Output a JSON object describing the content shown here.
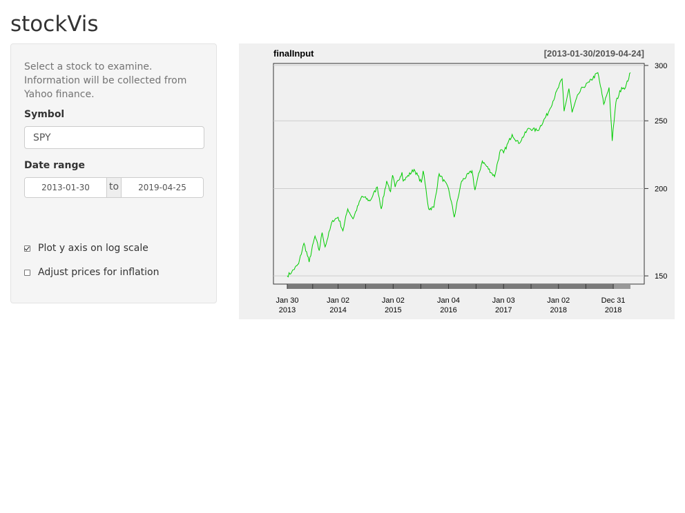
{
  "app": {
    "title": "stockVis"
  },
  "sidebar": {
    "help_text": "Select a stock to examine. Information will be collected from Yahoo finance.",
    "symbol": {
      "label": "Symbol",
      "value": "SPY"
    },
    "date_range": {
      "label": "Date range",
      "start": "2013-01-30",
      "separator": "to",
      "end": "2019-04-25"
    },
    "log_scale": {
      "label": "Plot y axis on log scale",
      "checked": true
    },
    "inflation": {
      "label": "Adjust prices for inflation",
      "checked": false
    }
  },
  "chart_data": {
    "type": "line",
    "title": "finalInput",
    "range_label": "[2013-01-30/2019-04-24]",
    "y_scale": "log",
    "ylim": [
      146,
      302
    ],
    "y_ticks": [
      150,
      200,
      250,
      300
    ],
    "y_axis_position": "right",
    "grid": true,
    "x_ticks": [
      {
        "date": "2013-01-30",
        "line1": "Jan 30",
        "line2": "2013"
      },
      {
        "date": "2014-01-02",
        "line1": "Jan 02",
        "line2": "2014"
      },
      {
        "date": "2015-01-02",
        "line1": "Jan 02",
        "line2": "2015"
      },
      {
        "date": "2016-01-04",
        "line1": "Jan 04",
        "line2": "2016"
      },
      {
        "date": "2017-01-03",
        "line1": "Jan 03",
        "line2": "2017"
      },
      {
        "date": "2018-01-02",
        "line1": "Jan 02",
        "line2": "2018"
      },
      {
        "date": "2018-12-31",
        "line1": "Dec 31",
        "line2": "2018"
      }
    ],
    "series": [
      {
        "color": "#00cc00",
        "points": [
          [
            "2013-01-30",
            150
          ],
          [
            "2013-03-01",
            152
          ],
          [
            "2013-04-15",
            156
          ],
          [
            "2013-05-21",
            167
          ],
          [
            "2013-06-24",
            157
          ],
          [
            "2013-08-02",
            171
          ],
          [
            "2013-08-30",
            163
          ],
          [
            "2013-09-18",
            173
          ],
          [
            "2013-10-08",
            165
          ],
          [
            "2013-11-27",
            180
          ],
          [
            "2014-01-02",
            182
          ],
          [
            "2014-02-03",
            174
          ],
          [
            "2014-03-07",
            187
          ],
          [
            "2014-04-11",
            181
          ],
          [
            "2014-06-09",
            195
          ],
          [
            "2014-08-01",
            192
          ],
          [
            "2014-09-19",
            201
          ],
          [
            "2014-10-15",
            187
          ],
          [
            "2014-11-20",
            205
          ],
          [
            "2014-12-16",
            198
          ],
          [
            "2014-12-29",
            209
          ],
          [
            "2015-01-15",
            201
          ],
          [
            "2015-03-02",
            211
          ],
          [
            "2015-03-10",
            205
          ],
          [
            "2015-05-21",
            213
          ],
          [
            "2015-07-08",
            204
          ],
          [
            "2015-07-20",
            212
          ],
          [
            "2015-08-25",
            187
          ],
          [
            "2015-09-29",
            188
          ],
          [
            "2015-11-03",
            210
          ],
          [
            "2016-01-04",
            200
          ],
          [
            "2016-02-11",
            182
          ],
          [
            "2016-03-31",
            205
          ],
          [
            "2016-06-08",
            212
          ],
          [
            "2016-06-27",
            199
          ],
          [
            "2016-08-15",
            219
          ],
          [
            "2016-11-04",
            208
          ],
          [
            "2016-12-13",
            227
          ],
          [
            "2017-01-03",
            225
          ],
          [
            "2017-03-01",
            239
          ],
          [
            "2017-04-13",
            232
          ],
          [
            "2017-06-19",
            244
          ],
          [
            "2017-08-18",
            242
          ],
          [
            "2017-10-27",
            257
          ],
          [
            "2018-01-26",
            287
          ],
          [
            "2018-02-08",
            258
          ],
          [
            "2018-03-12",
            278
          ],
          [
            "2018-04-02",
            257
          ],
          [
            "2018-05-14",
            273
          ],
          [
            "2018-06-12",
            279
          ],
          [
            "2018-07-25",
            284
          ],
          [
            "2018-09-20",
            293
          ],
          [
            "2018-10-29",
            264
          ],
          [
            "2018-12-03",
            279
          ],
          [
            "2018-12-24",
            234
          ],
          [
            "2019-01-18",
            266
          ],
          [
            "2019-02-25",
            279
          ],
          [
            "2019-03-22",
            279
          ],
          [
            "2019-04-24",
            293
          ]
        ]
      }
    ]
  }
}
